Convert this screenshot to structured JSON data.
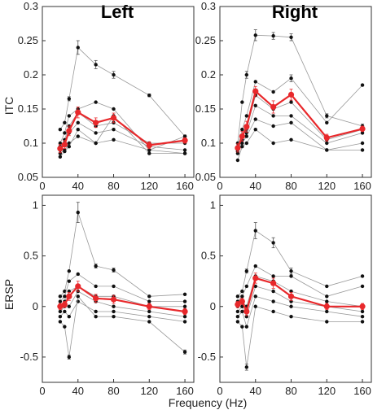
{
  "figure": {
    "col_titles": [
      "Left",
      "Right"
    ],
    "xlabel": "Frequency (Hz)",
    "row_ylabels": [
      "ITC",
      "ERSP"
    ]
  },
  "colors": {
    "mean_series": "#e8282b",
    "individual_series": "#999999",
    "markers": "#111111"
  },
  "chart_data": [
    {
      "type": "line",
      "panel": "ITC-Left",
      "title": "Left",
      "xlabel": "",
      "ylabel": "ITC",
      "xlim": [
        0,
        170
      ],
      "ylim": [
        0.05,
        0.3
      ],
      "xticks": [
        0,
        40,
        80,
        120,
        160
      ],
      "yticks": [
        0.05,
        0.1,
        0.15,
        0.2,
        0.25,
        0.3
      ],
      "ytick_labels": [
        "0.05",
        "0.1",
        "0.15",
        "0.2",
        "0.25",
        "0.3"
      ],
      "x": [
        20,
        25,
        30,
        40,
        60,
        80,
        120,
        160
      ],
      "series": [
        {
          "role": "mean",
          "values": [
            0.092,
            0.098,
            0.118,
            0.145,
            0.13,
            0.137,
            0.097,
            0.104
          ],
          "err": [
            0.006,
            0.006,
            0.007,
            0.008,
            0.007,
            0.007,
            0.005,
            0.004
          ]
        },
        {
          "role": "individual",
          "values": [
            0.12,
            0.13,
            0.165,
            0.24,
            0.215,
            0.2,
            0.17,
            0.11
          ],
          "err": [
            0,
            0,
            0.003,
            0.01,
            0.006,
            0.005,
            0.002,
            0.002
          ]
        },
        {
          "role": "individual",
          "values": [
            0.1,
            0.115,
            0.14,
            0.15,
            0.16,
            0.15,
            0.09,
            0.11
          ],
          "err": [
            0,
            0,
            0,
            0,
            0,
            0,
            0,
            0
          ]
        },
        {
          "role": "individual",
          "values": [
            0.095,
            0.105,
            0.125,
            0.145,
            0.125,
            0.13,
            0.1,
            0.1
          ],
          "err": [
            0,
            0,
            0,
            0,
            0,
            0,
            0,
            0
          ]
        },
        {
          "role": "individual",
          "values": [
            0.09,
            0.1,
            0.115,
            0.13,
            0.115,
            0.12,
            0.095,
            0.09
          ],
          "err": [
            0,
            0,
            0,
            0,
            0,
            0,
            0,
            0
          ]
        },
        {
          "role": "individual",
          "values": [
            0.085,
            0.09,
            0.1,
            0.11,
            0.1,
            0.105,
            0.09,
            0.085
          ],
          "err": [
            0,
            0,
            0,
            0,
            0,
            0,
            0,
            0
          ]
        },
        {
          "role": "individual",
          "values": [
            0.08,
            0.088,
            0.095,
            0.12,
            0.1,
            0.14,
            0.085,
            0.085
          ],
          "err": [
            0,
            0,
            0,
            0,
            0,
            0,
            0,
            0
          ]
        }
      ]
    },
    {
      "type": "line",
      "panel": "ITC-Right",
      "title": "Right",
      "xlabel": "",
      "ylabel": "",
      "xlim": [
        0,
        170
      ],
      "ylim": [
        0.05,
        0.3
      ],
      "xticks": [
        0,
        40,
        80,
        120,
        160
      ],
      "yticks": [
        0.05,
        0.1,
        0.15,
        0.2,
        0.25,
        0.3
      ],
      "ytick_labels": [
        "0.05",
        "0.1",
        "0.15",
        "0.2",
        "0.25",
        "0.3"
      ],
      "x": [
        20,
        25,
        30,
        40,
        60,
        80,
        120,
        160
      ],
      "series": [
        {
          "role": "mean",
          "values": [
            0.093,
            0.11,
            0.124,
            0.176,
            0.153,
            0.171,
            0.108,
            0.121
          ],
          "err": [
            0.006,
            0.007,
            0.008,
            0.007,
            0.009,
            0.008,
            0.005,
            0.004
          ]
        },
        {
          "role": "individual",
          "values": [
            0.1,
            0.16,
            0.2,
            0.258,
            0.257,
            0.255,
            0.14,
            0.125
          ],
          "err": [
            0,
            0,
            0.005,
            0.008,
            0.005,
            0.005,
            0.003,
            0.003
          ]
        },
        {
          "role": "individual",
          "values": [
            0.095,
            0.12,
            0.14,
            0.19,
            0.175,
            0.195,
            0.13,
            0.185
          ],
          "err": [
            0,
            0,
            0,
            0,
            0,
            0.005,
            0,
            0
          ]
        },
        {
          "role": "individual",
          "values": [
            0.09,
            0.11,
            0.12,
            0.17,
            0.15,
            0.16,
            0.105,
            0.12
          ],
          "err": [
            0,
            0,
            0,
            0,
            0,
            0,
            0,
            0
          ]
        },
        {
          "role": "individual",
          "values": [
            0.088,
            0.105,
            0.115,
            0.155,
            0.14,
            0.14,
            0.1,
            0.115
          ],
          "err": [
            0,
            0,
            0,
            0,
            0,
            0,
            0,
            0
          ]
        },
        {
          "role": "individual",
          "values": [
            0.085,
            0.1,
            0.11,
            0.135,
            0.125,
            0.13,
            0.09,
            0.1
          ],
          "err": [
            0,
            0,
            0,
            0,
            0,
            0,
            0,
            0
          ]
        },
        {
          "role": "individual",
          "values": [
            0.075,
            0.095,
            0.1,
            0.12,
            0.1,
            0.105,
            0.09,
            0.09
          ],
          "err": [
            0,
            0,
            0,
            0,
            0,
            0,
            0,
            0
          ]
        }
      ]
    },
    {
      "type": "line",
      "panel": "ERSP-Left",
      "title": "",
      "xlabel": "",
      "ylabel": "ERSP",
      "xlim": [
        0,
        170
      ],
      "ylim": [
        -0.75,
        1.1
      ],
      "xticks": [
        0,
        40,
        80,
        120,
        160
      ],
      "yticks": [
        -0.5,
        0,
        0.5,
        1
      ],
      "ytick_labels": [
        "-0.5",
        "0",
        "0.5",
        "1"
      ],
      "x": [
        20,
        25,
        30,
        40,
        60,
        80,
        120,
        160
      ],
      "series": [
        {
          "role": "mean",
          "values": [
            0.0,
            0.02,
            0.1,
            0.2,
            0.08,
            0.07,
            0.0,
            -0.05
          ],
          "err": [
            0.03,
            0.03,
            0.04,
            0.05,
            0.04,
            0.04,
            0.03,
            0.03
          ]
        },
        {
          "role": "individual",
          "values": [
            0.1,
            0.15,
            0.35,
            0.93,
            0.4,
            0.36,
            0.1,
            0.12
          ],
          "err": [
            0,
            0,
            0,
            0.1,
            0.02,
            0.02,
            0,
            0
          ]
        },
        {
          "role": "individual",
          "values": [
            0.05,
            0.1,
            0.25,
            0.32,
            0.2,
            0.2,
            0.05,
            0.05
          ],
          "err": [
            0,
            0,
            0,
            0,
            0,
            0,
            0,
            0
          ]
        },
        {
          "role": "individual",
          "values": [
            0.0,
            0.05,
            0.15,
            0.2,
            0.1,
            0.1,
            0.0,
            0.0
          ],
          "err": [
            0,
            0,
            0,
            0,
            0,
            0,
            0,
            0
          ]
        },
        {
          "role": "individual",
          "values": [
            -0.05,
            0.0,
            0.0,
            0.15,
            0.05,
            0.0,
            -0.05,
            -0.1
          ],
          "err": [
            0,
            0,
            0,
            0,
            0,
            0,
            0,
            0
          ]
        },
        {
          "role": "individual",
          "values": [
            -0.1,
            -0.05,
            -0.1,
            0.05,
            -0.05,
            -0.05,
            -0.1,
            -0.15
          ],
          "err": [
            0,
            0,
            0,
            0,
            0,
            0,
            0,
            0
          ]
        },
        {
          "role": "individual",
          "values": [
            -0.15,
            -0.2,
            -0.5,
            0.1,
            -0.1,
            -0.1,
            -0.15,
            -0.45
          ],
          "err": [
            0,
            0,
            0.02,
            0,
            0,
            0,
            0,
            0.02
          ]
        }
      ]
    },
    {
      "type": "line",
      "panel": "ERSP-Right",
      "title": "",
      "xlabel": "",
      "ylabel": "",
      "xlim": [
        0,
        170
      ],
      "ylim": [
        -0.75,
        1.1
      ],
      "xticks": [
        0,
        40,
        80,
        120,
        160
      ],
      "yticks": [
        -0.5,
        0,
        0.5,
        1
      ],
      "ytick_labels": [
        "-0.5",
        "0",
        "0.5",
        "1"
      ],
      "x": [
        20,
        25,
        30,
        40,
        60,
        80,
        120,
        160
      ],
      "series": [
        {
          "role": "mean",
          "values": [
            0.02,
            0.05,
            -0.05,
            0.28,
            0.23,
            0.1,
            0.0,
            0.0
          ],
          "err": [
            0.03,
            0.03,
            0.04,
            0.05,
            0.05,
            0.04,
            0.03,
            0.03
          ]
        },
        {
          "role": "individual",
          "values": [
            0.1,
            0.15,
            0.35,
            0.75,
            0.63,
            0.35,
            0.2,
            0.3
          ],
          "err": [
            0,
            0,
            0.02,
            0.08,
            0.05,
            0.03,
            0,
            0
          ]
        },
        {
          "role": "individual",
          "values": [
            0.05,
            0.1,
            0.2,
            0.4,
            0.3,
            0.3,
            0.1,
            0.2
          ],
          "err": [
            0,
            0,
            0,
            0,
            0,
            0,
            0,
            0
          ]
        },
        {
          "role": "individual",
          "values": [
            0.0,
            0.05,
            0.0,
            0.3,
            0.25,
            0.15,
            0.05,
            0.0
          ],
          "err": [
            0,
            0,
            0,
            0,
            0,
            0,
            0,
            0
          ]
        },
        {
          "role": "individual",
          "values": [
            -0.05,
            0.0,
            -0.1,
            0.2,
            0.15,
            0.05,
            0.0,
            -0.05
          ],
          "err": [
            0,
            0,
            0,
            0,
            0,
            0,
            0,
            0
          ]
        },
        {
          "role": "individual",
          "values": [
            -0.1,
            -0.05,
            -0.2,
            0.1,
            0.05,
            0.0,
            -0.05,
            -0.1
          ],
          "err": [
            0,
            0,
            0,
            0,
            0,
            0,
            0,
            0
          ]
        },
        {
          "role": "individual",
          "values": [
            -0.15,
            -0.2,
            -0.6,
            0.0,
            -0.05,
            -0.1,
            -0.15,
            -0.15
          ],
          "err": [
            0,
            0,
            0.03,
            0,
            0,
            0,
            0,
            0
          ]
        }
      ]
    }
  ]
}
